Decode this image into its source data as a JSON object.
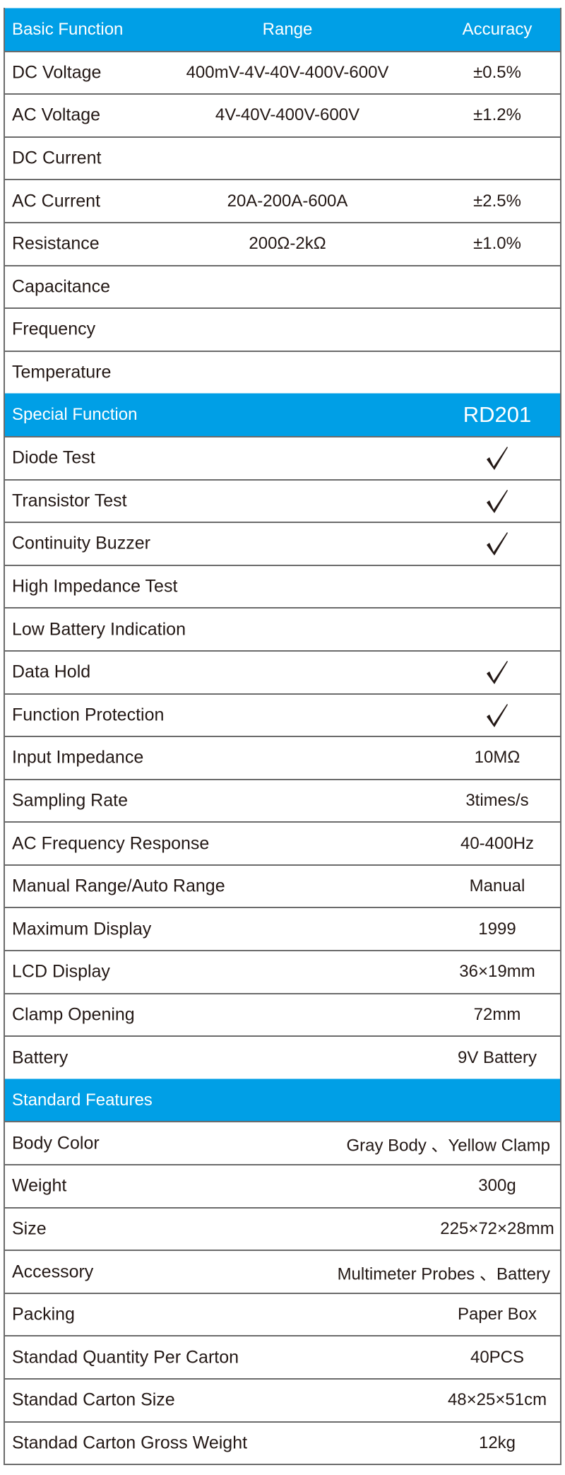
{
  "colors": {
    "header_bg": "#009fe6",
    "border": "#6b6b6b",
    "text": "#231815"
  },
  "sections": [
    {
      "header": {
        "label": "Basic Function",
        "col2": "Range",
        "col3": "Accuracy"
      },
      "rows": [
        {
          "label": "DC Voltage",
          "range": "400mV-4V-40V-400V-600V",
          "value": "±0.5%"
        },
        {
          "label": "AC Voltage",
          "range": "4V-40V-400V-600V",
          "value": "±1.2%"
        },
        {
          "label": "DC Current",
          "range": "",
          "value": ""
        },
        {
          "label": "AC Current",
          "range": "20A-200A-600A",
          "value": "±2.5%"
        },
        {
          "label": "Resistance",
          "range": "200Ω-2kΩ",
          "value": "±1.0%"
        },
        {
          "label": "Capacitance",
          "range": "",
          "value": ""
        },
        {
          "label": "Frequency",
          "range": "",
          "value": ""
        },
        {
          "label": "Temperature",
          "range": "",
          "value": ""
        }
      ]
    },
    {
      "header": {
        "label": "Special Function",
        "col3": "RD201"
      },
      "rows": [
        {
          "label": "Diode Test",
          "check": true
        },
        {
          "label": "Transistor Test",
          "check": true
        },
        {
          "label": "Continuity Buzzer",
          "check": true
        },
        {
          "label": "High Impedance Test"
        },
        {
          "label": "Low Battery Indication"
        },
        {
          "label": "Data Hold",
          "check": true
        },
        {
          "label": "Function Protection",
          "check": true
        },
        {
          "label": "Input Impedance",
          "value": "10MΩ"
        },
        {
          "label": "Sampling Rate",
          "value": "3times/s"
        },
        {
          "label": "AC Frequency Response",
          "value": "40-400Hz"
        },
        {
          "label": "Manual Range/Auto Range",
          "value": "Manual"
        },
        {
          "label": "Maximum Display",
          "value": "1999"
        },
        {
          "label": "LCD Display",
          "value": "36×19mm"
        },
        {
          "label": "Clamp Opening",
          "value": "72mm"
        },
        {
          "label": "Battery",
          "value": "9V Battery"
        }
      ]
    },
    {
      "header": {
        "label": "Standard  Features"
      },
      "rows": [
        {
          "label": "Body Color",
          "value": "Gray Body 、Yellow Clamp",
          "align": "right"
        },
        {
          "label": "Weight",
          "value": "300g"
        },
        {
          "label": "Size",
          "value": "225×72×28mm"
        },
        {
          "label": "Accessory",
          "value": "Multimeter Probes 、Battery",
          "align": "right"
        },
        {
          "label": "Packing",
          "value": "Paper Box"
        },
        {
          "label": "Standad Quantity Per Carton",
          "value": "40PCS"
        },
        {
          "label": "Standad Carton Size",
          "value": "48×25×51cm"
        },
        {
          "label": "Standad Carton Gross Weight",
          "value": "12kg"
        }
      ]
    }
  ]
}
